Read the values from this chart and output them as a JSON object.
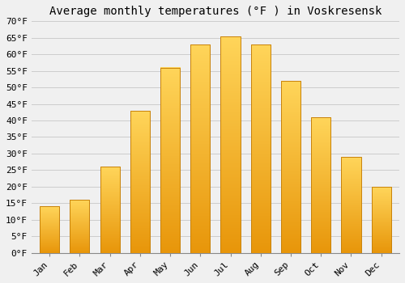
{
  "title": "Average monthly temperatures (°F ) in Voskresensk",
  "months": [
    "Jan",
    "Feb",
    "Mar",
    "Apr",
    "May",
    "Jun",
    "Jul",
    "Aug",
    "Sep",
    "Oct",
    "Nov",
    "Dec"
  ],
  "values": [
    14,
    16,
    26,
    43,
    56,
    63,
    65.5,
    63,
    52,
    41,
    29,
    20
  ],
  "bar_color_bottom": "#E8960A",
  "bar_color_top": "#FFD55A",
  "bar_edge_color": "#C8820A",
  "background_color": "#F0F0F0",
  "ylim": [
    0,
    70
  ],
  "yticks": [
    0,
    5,
    10,
    15,
    20,
    25,
    30,
    35,
    40,
    45,
    50,
    55,
    60,
    65,
    70
  ],
  "ytick_labels": [
    "0°F",
    "5°F",
    "10°F",
    "15°F",
    "20°F",
    "25°F",
    "30°F",
    "35°F",
    "40°F",
    "45°F",
    "50°F",
    "55°F",
    "60°F",
    "65°F",
    "70°F"
  ],
  "title_fontsize": 10,
  "tick_fontsize": 8,
  "grid_color": "#CCCCCC",
  "font_family": "monospace",
  "bar_width": 0.65
}
